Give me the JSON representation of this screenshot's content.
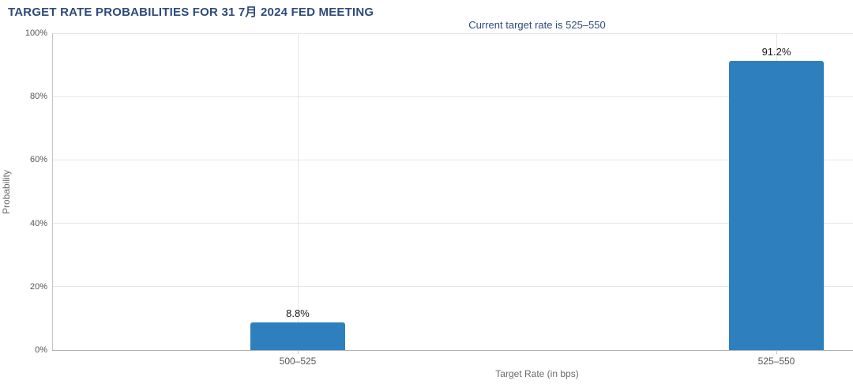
{
  "chart_data": {
    "type": "bar",
    "title": "TARGET RATE PROBABILITIES FOR 31 7月 2024 FED MEETING",
    "subtitle": "Current target rate is 525–550",
    "xlabel": "Target Rate (in bps)",
    "ylabel": "Probability",
    "categories": [
      "500–525",
      "525–550"
    ],
    "values": [
      8.8,
      91.2
    ],
    "value_labels": [
      "8.8%",
      "91.2%"
    ],
    "ylim": [
      0,
      100
    ],
    "ytick_labels": [
      "0%",
      "20%",
      "40%",
      "60%",
      "80%",
      "100%"
    ],
    "grid": true,
    "legend_position": "none",
    "colors": {
      "bar": "#2d80bd",
      "title": "#2e4a7d",
      "subtitle": "#2e4a7d",
      "tick_text": "#555555",
      "axis_title_text": "#6b6b6b",
      "value_label_text": "#1a1a1a",
      "gridline": "#e6e6e6",
      "axis_line": "#c6c6c6",
      "bottom_axis_line": "#b3b3b3",
      "background": "#ffffff"
    }
  }
}
